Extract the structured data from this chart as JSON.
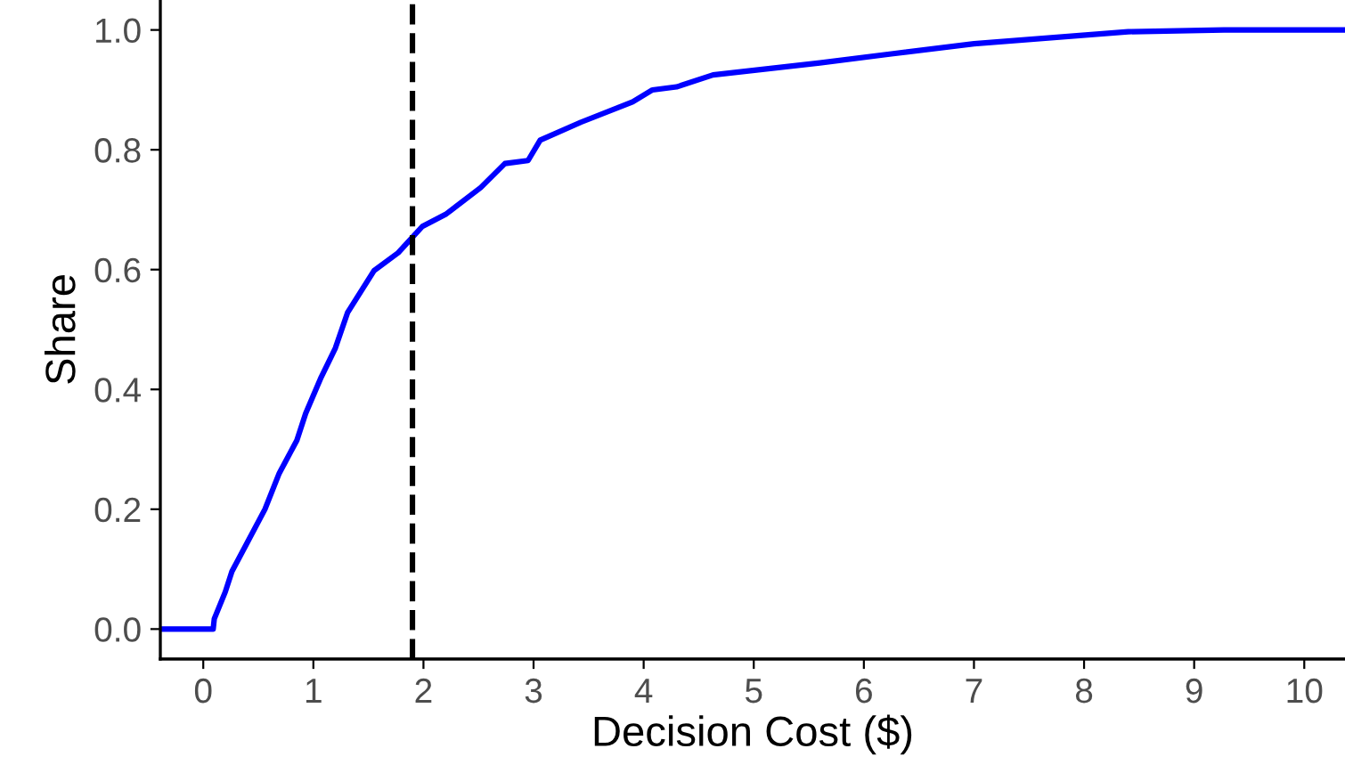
{
  "chart_data": {
    "type": "line",
    "xlabel": "Decision Cost ($)",
    "ylabel": "Share",
    "x": [
      -0.39,
      0.09,
      0.1,
      0.2,
      0.26,
      0.39,
      0.56,
      0.69,
      0.85,
      0.93,
      1.07,
      1.2,
      1.31,
      1.55,
      1.77,
      1.99,
      2.2,
      2.52,
      2.74,
      2.95,
      3.06,
      3.43,
      3.9,
      4.08,
      4.3,
      4.63,
      5.6,
      6.25,
      7.0,
      8.4,
      9.27,
      10.37
    ],
    "series": [
      {
        "color": "#0000ff",
        "values": [
          0,
          0,
          0.017,
          0.062,
          0.096,
          0.141,
          0.2,
          0.26,
          0.315,
          0.36,
          0.42,
          0.469,
          0.528,
          0.598,
          0.628,
          0.672,
          0.692,
          0.737,
          0.777,
          0.782,
          0.816,
          0.846,
          0.88,
          0.9,
          0.905,
          0.925,
          0.945,
          0.96,
          0.977,
          0.997,
          1.0,
          1.0
        ]
      }
    ],
    "xlim": [
      -0.39,
      10.37
    ],
    "ylim": [
      -0.05,
      1.05
    ],
    "xticks": [
      0,
      1,
      2,
      3,
      4,
      5,
      6,
      7,
      8,
      9,
      10
    ],
    "yticks": [
      {
        "value": 0,
        "label": "0.0"
      },
      {
        "value": 0.2,
        "label": "0.2"
      },
      {
        "value": 0.4,
        "label": "0.4"
      },
      {
        "value": 0.6,
        "label": "0.6"
      },
      {
        "value": 0.8,
        "label": "0.8"
      },
      {
        "value": 1,
        "label": "1.0"
      }
    ],
    "ref_lines": [
      {
        "axis": "x",
        "value": 1.9,
        "color": "#000000",
        "line_style": "dashed"
      }
    ],
    "marker": "none",
    "line_style": "solid"
  }
}
